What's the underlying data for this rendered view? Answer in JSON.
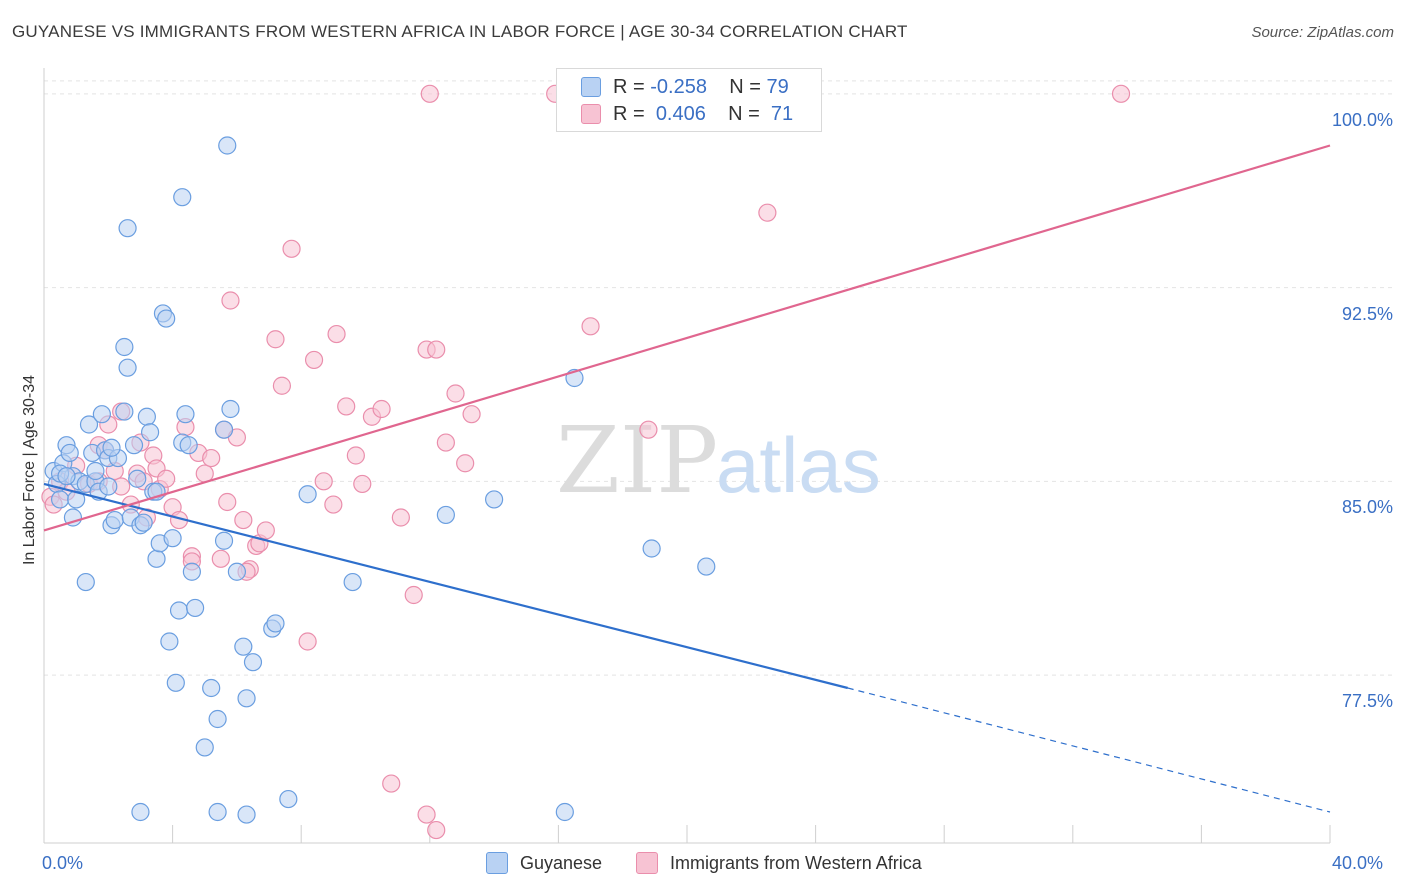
{
  "title": "GUYANESE VS IMMIGRANTS FROM WESTERN AFRICA IN LABOR FORCE | AGE 30-34 CORRELATION CHART",
  "source": "Source: ZipAtlas.com",
  "watermark": {
    "zip": "ZIP",
    "atlas": "atlas"
  },
  "legend_top": {
    "rows": [
      {
        "r_label": "R = ",
        "r_value": "-0.258",
        "n_label": "N = ",
        "n_value": "79",
        "color": "#a8c8f0"
      },
      {
        "r_label": "R = ",
        "r_value": "0.406",
        "n_label": "N = ",
        "n_value": "71",
        "color": "#f5b6c8"
      }
    ]
  },
  "chart_data": {
    "type": "scatter",
    "xlabel": "",
    "ylabel": "In Labor Force | Age 30-34",
    "xlim": [
      0,
      40
    ],
    "ylim": [
      71,
      101
    ],
    "x_tick_labels": [
      {
        "value": 0,
        "label": "0.0%"
      },
      {
        "value": 40,
        "label": "40.0%"
      }
    ],
    "y_tick_labels": [
      {
        "value": 100,
        "label": "100.0%"
      },
      {
        "value": 92.5,
        "label": "92.5%"
      },
      {
        "value": 85,
        "label": "85.0%"
      },
      {
        "value": 77.5,
        "label": "77.5%"
      }
    ],
    "grid": true,
    "legend_placement": "bottom",
    "series": [
      {
        "name": "Guyanese",
        "color": "#6a9ee0",
        "fill": "#b9d2f3",
        "trend": {
          "x_start": 0,
          "y_start": 84.9,
          "x_solid_end": 25,
          "y_solid_end": 77.0,
          "x_end": 40,
          "y_end": 72.2,
          "color": "#2e6fcc"
        },
        "points": [
          [
            0.3,
            85.4
          ],
          [
            0.4,
            84.9
          ],
          [
            0.5,
            84.3
          ],
          [
            0.6,
            85.7
          ],
          [
            0.7,
            86.4
          ],
          [
            0.8,
            86.1
          ],
          [
            0.9,
            85.2
          ],
          [
            1.0,
            84.3
          ],
          [
            0.5,
            85.3
          ],
          [
            0.9,
            83.6
          ],
          [
            1.1,
            85.0
          ],
          [
            1.3,
            84.9
          ],
          [
            1.4,
            87.2
          ],
          [
            1.5,
            86.1
          ],
          [
            1.6,
            85.0
          ],
          [
            1.7,
            84.6
          ],
          [
            1.8,
            87.6
          ],
          [
            1.9,
            86.2
          ],
          [
            2.0,
            85.9
          ],
          [
            2.1,
            83.3
          ],
          [
            2.2,
            83.5
          ],
          [
            2.3,
            85.9
          ],
          [
            2.5,
            87.7
          ],
          [
            2.6,
            89.4
          ],
          [
            2.5,
            90.2
          ],
          [
            2.7,
            83.6
          ],
          [
            2.8,
            86.4
          ],
          [
            2.9,
            85.1
          ],
          [
            3.0,
            83.3
          ],
          [
            3.1,
            83.4
          ],
          [
            3.2,
            87.5
          ],
          [
            3.3,
            86.9
          ],
          [
            3.4,
            84.6
          ],
          [
            3.5,
            82.0
          ],
          [
            3.6,
            82.6
          ],
          [
            3.7,
            91.5
          ],
          [
            3.8,
            91.3
          ],
          [
            3.9,
            78.8
          ],
          [
            4.0,
            82.8
          ],
          [
            4.1,
            77.2
          ],
          [
            4.2,
            80.0
          ],
          [
            4.3,
            86.5
          ],
          [
            4.4,
            87.6
          ],
          [
            4.5,
            86.4
          ],
          [
            4.6,
            81.5
          ],
          [
            4.7,
            80.1
          ],
          [
            5.0,
            74.7
          ],
          [
            5.2,
            77.0
          ],
          [
            5.4,
            75.8
          ],
          [
            5.6,
            82.7
          ],
          [
            5.7,
            98.0
          ],
          [
            5.8,
            87.8
          ],
          [
            6.0,
            81.5
          ],
          [
            6.2,
            78.6
          ],
          [
            6.3,
            76.6
          ],
          [
            6.5,
            78.0
          ],
          [
            7.1,
            79.3
          ],
          [
            7.2,
            79.5
          ],
          [
            7.6,
            72.7
          ],
          [
            8.2,
            84.5
          ],
          [
            9.6,
            81.1
          ],
          [
            12.5,
            83.7
          ],
          [
            14.0,
            84.3
          ],
          [
            16.2,
            72.2
          ],
          [
            16.5,
            89.0
          ],
          [
            18.9,
            82.4
          ],
          [
            20.6,
            81.7
          ],
          [
            4.3,
            96.0
          ],
          [
            2.6,
            94.8
          ],
          [
            1.3,
            81.1
          ],
          [
            0.7,
            85.2
          ],
          [
            1.6,
            85.4
          ],
          [
            2.1,
            86.3
          ],
          [
            3.0,
            72.2
          ],
          [
            5.4,
            72.2
          ],
          [
            6.3,
            72.1
          ],
          [
            5.6,
            87.0
          ],
          [
            2.0,
            84.8
          ],
          [
            3.5,
            84.6
          ]
        ]
      },
      {
        "name": "Immigrants from Western Africa",
        "color": "#ea8eac",
        "fill": "#f7c3d3",
        "trend": {
          "x_start": 0,
          "y_start": 83.1,
          "x_solid_end": 40,
          "y_solid_end": 98.0,
          "x_end": 40,
          "y_end": 98.0,
          "color": "#e0668f"
        },
        "points": [
          [
            0.2,
            84.4
          ],
          [
            0.3,
            84.1
          ],
          [
            0.5,
            85.0
          ],
          [
            0.7,
            84.6
          ],
          [
            1.0,
            85.6
          ],
          [
            1.4,
            84.9
          ],
          [
            1.7,
            86.4
          ],
          [
            1.9,
            86.2
          ],
          [
            2.0,
            87.2
          ],
          [
            2.2,
            85.4
          ],
          [
            2.4,
            84.8
          ],
          [
            2.7,
            84.1
          ],
          [
            2.9,
            85.3
          ],
          [
            3.0,
            86.5
          ],
          [
            3.2,
            83.6
          ],
          [
            3.4,
            86.0
          ],
          [
            3.5,
            85.5
          ],
          [
            3.6,
            84.7
          ],
          [
            3.8,
            85.1
          ],
          [
            4.0,
            84.0
          ],
          [
            4.2,
            83.5
          ],
          [
            4.4,
            87.1
          ],
          [
            4.6,
            82.1
          ],
          [
            4.8,
            86.1
          ],
          [
            5.0,
            85.3
          ],
          [
            5.2,
            85.9
          ],
          [
            5.5,
            82.0
          ],
          [
            5.6,
            87.0
          ],
          [
            5.8,
            92.0
          ],
          [
            6.0,
            86.7
          ],
          [
            6.2,
            83.5
          ],
          [
            6.4,
            81.6
          ],
          [
            6.6,
            82.5
          ],
          [
            6.7,
            82.6
          ],
          [
            6.9,
            83.1
          ],
          [
            7.2,
            90.5
          ],
          [
            7.4,
            88.7
          ],
          [
            7.7,
            94.0
          ],
          [
            8.2,
            78.8
          ],
          [
            8.4,
            89.7
          ],
          [
            8.7,
            85.0
          ],
          [
            9.0,
            84.1
          ],
          [
            9.1,
            90.7
          ],
          [
            9.4,
            87.9
          ],
          [
            9.7,
            86.0
          ],
          [
            9.9,
            84.9
          ],
          [
            10.2,
            87.5
          ],
          [
            10.5,
            87.8
          ],
          [
            11.1,
            83.6
          ],
          [
            11.5,
            80.6
          ],
          [
            11.9,
            90.1
          ],
          [
            12.2,
            90.1
          ],
          [
            12.5,
            86.5
          ],
          [
            12.8,
            88.4
          ],
          [
            13.1,
            85.7
          ],
          [
            13.3,
            87.6
          ],
          [
            15.9,
            100.0
          ],
          [
            17.0,
            91.0
          ],
          [
            18.8,
            87.0
          ],
          [
            22.5,
            95.4
          ],
          [
            33.5,
            100.0
          ],
          [
            12.0,
            100.0
          ],
          [
            10.8,
            73.3
          ],
          [
            11.9,
            72.1
          ],
          [
            12.2,
            71.5
          ],
          [
            6.3,
            81.5
          ],
          [
            5.7,
            84.2
          ],
          [
            4.6,
            81.9
          ],
          [
            2.4,
            87.7
          ],
          [
            1.7,
            85.0
          ],
          [
            3.1,
            85.0
          ]
        ]
      }
    ]
  }
}
